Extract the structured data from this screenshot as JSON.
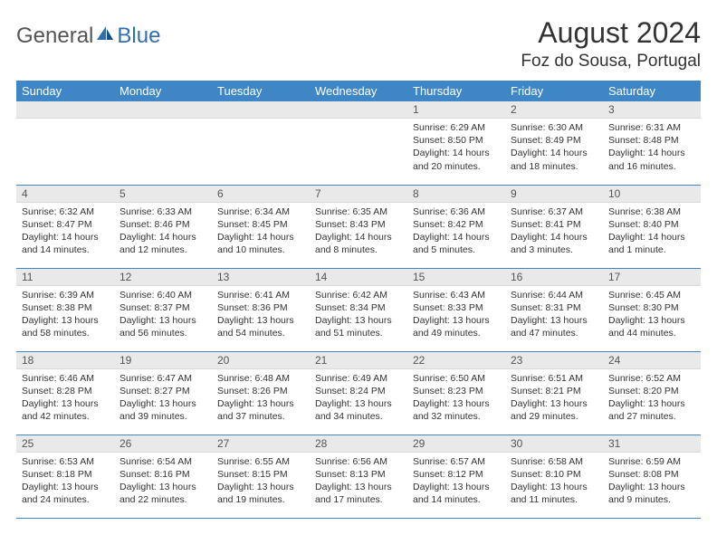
{
  "logo": {
    "text1": "General",
    "text2": "Blue"
  },
  "title": "August 2024",
  "location": "Foz do Sousa, Portugal",
  "colors": {
    "header_bg": "#3f86c6",
    "header_text": "#ffffff",
    "daynum_bg": "#e9e9e9",
    "cell_border": "#3f86c6",
    "logo_gray": "#555555",
    "logo_blue": "#2f6fb0"
  },
  "calendar": {
    "type": "table",
    "columns": [
      "Sunday",
      "Monday",
      "Tuesday",
      "Wednesday",
      "Thursday",
      "Friday",
      "Saturday"
    ],
    "weeks": [
      [
        null,
        null,
        null,
        null,
        {
          "d": "1",
          "sr": "6:29 AM",
          "ss": "8:50 PM",
          "dl": "14 hours and 20 minutes."
        },
        {
          "d": "2",
          "sr": "6:30 AM",
          "ss": "8:49 PM",
          "dl": "14 hours and 18 minutes."
        },
        {
          "d": "3",
          "sr": "6:31 AM",
          "ss": "8:48 PM",
          "dl": "14 hours and 16 minutes."
        }
      ],
      [
        {
          "d": "4",
          "sr": "6:32 AM",
          "ss": "8:47 PM",
          "dl": "14 hours and 14 minutes."
        },
        {
          "d": "5",
          "sr": "6:33 AM",
          "ss": "8:46 PM",
          "dl": "14 hours and 12 minutes."
        },
        {
          "d": "6",
          "sr": "6:34 AM",
          "ss": "8:45 PM",
          "dl": "14 hours and 10 minutes."
        },
        {
          "d": "7",
          "sr": "6:35 AM",
          "ss": "8:43 PM",
          "dl": "14 hours and 8 minutes."
        },
        {
          "d": "8",
          "sr": "6:36 AM",
          "ss": "8:42 PM",
          "dl": "14 hours and 5 minutes."
        },
        {
          "d": "9",
          "sr": "6:37 AM",
          "ss": "8:41 PM",
          "dl": "14 hours and 3 minutes."
        },
        {
          "d": "10",
          "sr": "6:38 AM",
          "ss": "8:40 PM",
          "dl": "14 hours and 1 minute."
        }
      ],
      [
        {
          "d": "11",
          "sr": "6:39 AM",
          "ss": "8:38 PM",
          "dl": "13 hours and 58 minutes."
        },
        {
          "d": "12",
          "sr": "6:40 AM",
          "ss": "8:37 PM",
          "dl": "13 hours and 56 minutes."
        },
        {
          "d": "13",
          "sr": "6:41 AM",
          "ss": "8:36 PM",
          "dl": "13 hours and 54 minutes."
        },
        {
          "d": "14",
          "sr": "6:42 AM",
          "ss": "8:34 PM",
          "dl": "13 hours and 51 minutes."
        },
        {
          "d": "15",
          "sr": "6:43 AM",
          "ss": "8:33 PM",
          "dl": "13 hours and 49 minutes."
        },
        {
          "d": "16",
          "sr": "6:44 AM",
          "ss": "8:31 PM",
          "dl": "13 hours and 47 minutes."
        },
        {
          "d": "17",
          "sr": "6:45 AM",
          "ss": "8:30 PM",
          "dl": "13 hours and 44 minutes."
        }
      ],
      [
        {
          "d": "18",
          "sr": "6:46 AM",
          "ss": "8:28 PM",
          "dl": "13 hours and 42 minutes."
        },
        {
          "d": "19",
          "sr": "6:47 AM",
          "ss": "8:27 PM",
          "dl": "13 hours and 39 minutes."
        },
        {
          "d": "20",
          "sr": "6:48 AM",
          "ss": "8:26 PM",
          "dl": "13 hours and 37 minutes."
        },
        {
          "d": "21",
          "sr": "6:49 AM",
          "ss": "8:24 PM",
          "dl": "13 hours and 34 minutes."
        },
        {
          "d": "22",
          "sr": "6:50 AM",
          "ss": "8:23 PM",
          "dl": "13 hours and 32 minutes."
        },
        {
          "d": "23",
          "sr": "6:51 AM",
          "ss": "8:21 PM",
          "dl": "13 hours and 29 minutes."
        },
        {
          "d": "24",
          "sr": "6:52 AM",
          "ss": "8:20 PM",
          "dl": "13 hours and 27 minutes."
        }
      ],
      [
        {
          "d": "25",
          "sr": "6:53 AM",
          "ss": "8:18 PM",
          "dl": "13 hours and 24 minutes."
        },
        {
          "d": "26",
          "sr": "6:54 AM",
          "ss": "8:16 PM",
          "dl": "13 hours and 22 minutes."
        },
        {
          "d": "27",
          "sr": "6:55 AM",
          "ss": "8:15 PM",
          "dl": "13 hours and 19 minutes."
        },
        {
          "d": "28",
          "sr": "6:56 AM",
          "ss": "8:13 PM",
          "dl": "13 hours and 17 minutes."
        },
        {
          "d": "29",
          "sr": "6:57 AM",
          "ss": "8:12 PM",
          "dl": "13 hours and 14 minutes."
        },
        {
          "d": "30",
          "sr": "6:58 AM",
          "ss": "8:10 PM",
          "dl": "13 hours and 11 minutes."
        },
        {
          "d": "31",
          "sr": "6:59 AM",
          "ss": "8:08 PM",
          "dl": "13 hours and 9 minutes."
        }
      ]
    ],
    "labels": {
      "sunrise": "Sunrise:",
      "sunset": "Sunset:",
      "daylight": "Daylight:"
    }
  }
}
